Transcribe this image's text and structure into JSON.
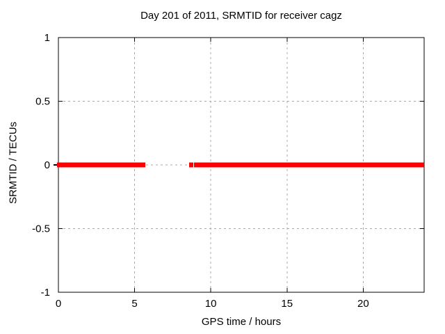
{
  "figure": {
    "background": "#ffffff",
    "text_color": "#000000"
  },
  "chart_data": {
    "type": "line",
    "title": "Day 201 of 2011, SRMTID for receiver cagz",
    "xlabel": "GPS time / hours",
    "ylabel": "SRMTID / TECUs",
    "xlim": [
      0,
      24
    ],
    "ylim": [
      -1,
      1
    ],
    "xticks": [
      0,
      5,
      10,
      15,
      20
    ],
    "xtick_labels": [
      "0",
      "5",
      "10",
      "15",
      "20"
    ],
    "yticks": [
      -1,
      -0.5,
      0,
      0.5,
      1
    ],
    "ytick_labels": [
      "-1",
      "-0.5",
      "0",
      "0.5",
      "1"
    ],
    "grid": true,
    "grid_color": "#a8a8a8",
    "border_color": "#000000",
    "legend": "none",
    "series": [
      {
        "name": "SRMTID",
        "color": "#ff0000",
        "line_width": 7,
        "y": 0,
        "x_segments": [
          [
            0,
            5.38
          ],
          [
            5.47,
            5.7
          ],
          [
            8.67,
            8.85
          ],
          [
            8.99,
            24
          ]
        ]
      }
    ]
  }
}
